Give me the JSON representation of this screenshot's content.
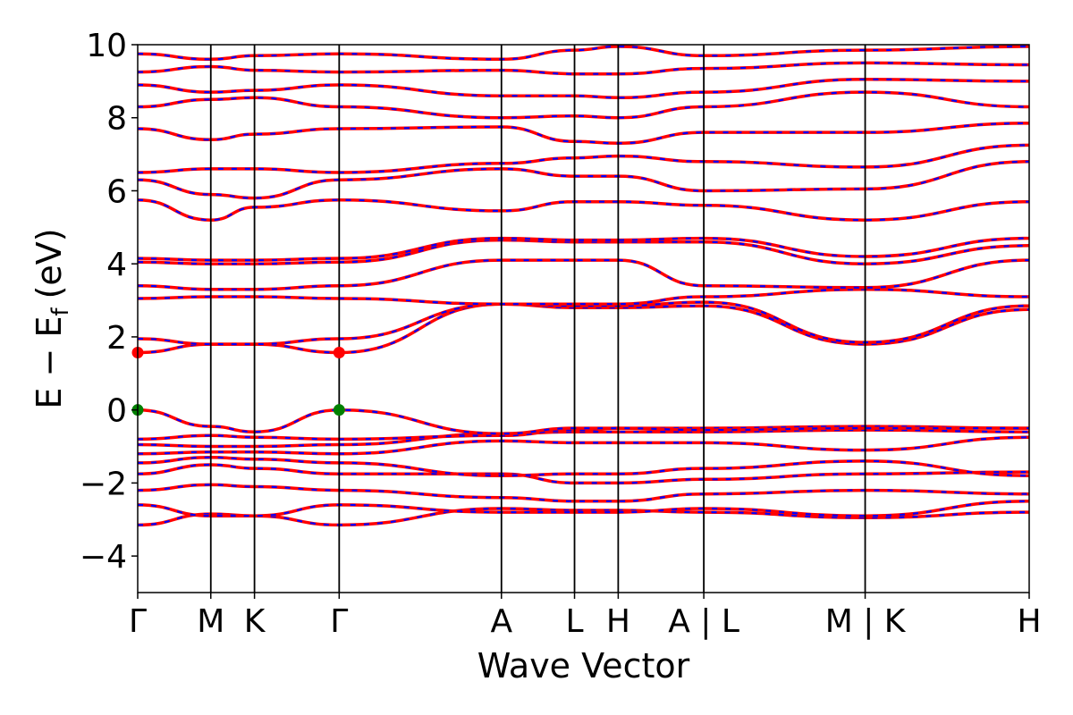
{
  "chart_data": {
    "type": "line",
    "title": "",
    "xlabel": "Wave Vector",
    "ylabel": "E − E",
    "ylabel_sub": "f",
    "ylabel_unit": "(eV)",
    "ylim": [
      -5,
      10
    ],
    "yticks": [
      -4,
      -2,
      0,
      2,
      4,
      6,
      8,
      10
    ],
    "ytick_labels": [
      "−4",
      "−2",
      "0",
      "2",
      "4",
      "6",
      "8",
      "10"
    ],
    "xlim": [
      0,
      10
    ],
    "kpoints": [
      {
        "label": "Γ",
        "x": 0.0
      },
      {
        "label": "M",
        "x": 0.82
      },
      {
        "label": "K",
        "x": 1.31
      },
      {
        "label": "Γ",
        "x": 2.26
      },
      {
        "label": "A",
        "x": 4.08
      },
      {
        "label": "L",
        "x": 4.9
      },
      {
        "label": "H",
        "x": 5.39
      },
      {
        "label": "A | L",
        "x": 6.35
      },
      {
        "label": "M | K",
        "x": 8.16
      },
      {
        "label": "H",
        "x": 10.0
      }
    ],
    "band_colors": {
      "line": "#ff0000",
      "dash": "#0000ff"
    },
    "grid": false,
    "legend": "none",
    "markers": [
      {
        "x": 0.0,
        "y": 1.57,
        "color": "#ff0000"
      },
      {
        "x": 2.26,
        "y": 1.57,
        "color": "#ff0000"
      },
      {
        "x": 0.0,
        "y": 0.0,
        "color": "#008000"
      },
      {
        "x": 2.26,
        "y": 0.0,
        "color": "#008000"
      }
    ],
    "series": [
      {
        "x": [
          0,
          0.82,
          1.31,
          2.26,
          4.08,
          4.9,
          5.39,
          6.35,
          8.16,
          10
        ],
        "y": [
          -3.15,
          -2.85,
          -2.9,
          -3.15,
          -2.7,
          -2.75,
          -2.75,
          -2.8,
          -2.95,
          -2.8
        ]
      },
      {
        "x": [
          0,
          0.82,
          1.31,
          2.26,
          4.08,
          4.9,
          5.39,
          6.35,
          8.16,
          10
        ],
        "y": [
          -2.6,
          -2.9,
          -2.9,
          -2.6,
          -2.8,
          -2.8,
          -2.8,
          -2.7,
          -2.9,
          -2.5
        ]
      },
      {
        "x": [
          0,
          0.82,
          1.31,
          2.26,
          4.08,
          4.9,
          5.39,
          6.35,
          8.16,
          10
        ],
        "y": [
          -2.2,
          -2.05,
          -2.1,
          -2.2,
          -2.4,
          -2.5,
          -2.5,
          -2.3,
          -2.2,
          -2.3
        ]
      },
      {
        "x": [
          0,
          0.82,
          1.31,
          2.26,
          4.08,
          4.9,
          5.39,
          6.35,
          8.16,
          10
        ],
        "y": [
          -1.75,
          -1.5,
          -1.6,
          -1.75,
          -1.75,
          -2.0,
          -2.0,
          -1.9,
          -1.75,
          -1.7
        ]
      },
      {
        "x": [
          0,
          0.82,
          1.31,
          2.26,
          4.08,
          4.9,
          5.39,
          6.35,
          8.16,
          10
        ],
        "y": [
          -1.45,
          -1.3,
          -1.35,
          -1.45,
          -1.8,
          -1.75,
          -1.75,
          -1.6,
          -1.4,
          -1.8
        ]
      },
      {
        "x": [
          0,
          0.82,
          1.31,
          2.26,
          4.08,
          4.9,
          5.39,
          6.35,
          8.16,
          10
        ],
        "y": [
          -1.2,
          -1.15,
          -1.15,
          -1.2,
          -0.85,
          -0.9,
          -0.9,
          -0.9,
          -1.1,
          -0.75
        ]
      },
      {
        "x": [
          0,
          0.82,
          1.31,
          2.26,
          4.08,
          4.9,
          5.39,
          6.35,
          8.16,
          10
        ],
        "y": [
          -0.95,
          -1.0,
          -1.0,
          -0.95,
          -0.65,
          -0.6,
          -0.6,
          -0.6,
          -0.55,
          -0.6
        ]
      },
      {
        "x": [
          0,
          0.82,
          1.31,
          2.26,
          4.08,
          4.9,
          5.39,
          6.35,
          8.16,
          10
        ],
        "y": [
          -0.8,
          -0.7,
          -0.75,
          -0.8,
          -0.7,
          -0.55,
          -0.5,
          -0.5,
          -0.45,
          -0.5
        ]
      },
      {
        "x": [
          0,
          0.82,
          1.31,
          2.26,
          4.08,
          4.9,
          5.39,
          6.35,
          8.16,
          10
        ],
        "y": [
          0.0,
          -0.45,
          -0.6,
          0.0,
          -0.65,
          -0.5,
          -0.5,
          -0.55,
          -0.5,
          -0.5
        ]
      },
      {
        "x": [
          0,
          0.82,
          1.31,
          2.26,
          4.08,
          4.9,
          5.39,
          6.35,
          8.16,
          10
        ],
        "y": [
          1.57,
          1.8,
          1.8,
          1.57,
          2.9,
          2.8,
          2.8,
          2.85,
          1.8,
          2.75
        ]
      },
      {
        "x": [
          0,
          0.82,
          1.31,
          2.26,
          4.08,
          4.9,
          5.39,
          6.35,
          8.16,
          10
        ],
        "y": [
          1.95,
          1.8,
          1.8,
          1.95,
          2.9,
          2.85,
          2.85,
          2.95,
          1.85,
          2.85
        ]
      },
      {
        "x": [
          0,
          0.82,
          1.31,
          2.26,
          4.08,
          4.9,
          5.39,
          6.35,
          8.16,
          10
        ],
        "y": [
          3.05,
          3.1,
          3.1,
          3.05,
          2.9,
          2.9,
          2.9,
          3.1,
          3.3,
          3.1
        ]
      },
      {
        "x": [
          0,
          0.82,
          1.31,
          2.26,
          4.08,
          4.9,
          5.39,
          6.35,
          8.16,
          10
        ],
        "y": [
          3.4,
          3.3,
          3.3,
          3.4,
          4.1,
          4.1,
          4.1,
          3.4,
          3.35,
          4.1
        ]
      },
      {
        "x": [
          0,
          0.82,
          1.31,
          2.26,
          4.08,
          4.9,
          5.39,
          6.35,
          8.16,
          10
        ],
        "y": [
          4.05,
          4.0,
          4.0,
          4.05,
          4.65,
          4.6,
          4.6,
          4.6,
          4.0,
          4.5
        ]
      },
      {
        "x": [
          0,
          0.82,
          1.31,
          2.26,
          4.08,
          4.9,
          5.39,
          6.35,
          8.16,
          10
        ],
        "y": [
          4.15,
          4.1,
          4.1,
          4.15,
          4.7,
          4.65,
          4.65,
          4.7,
          4.2,
          4.7
        ]
      },
      {
        "x": [
          0,
          0.82,
          1.31,
          2.26,
          4.08,
          4.9,
          5.39,
          6.35,
          8.16,
          10
        ],
        "y": [
          5.75,
          5.2,
          5.55,
          5.75,
          5.45,
          5.7,
          5.7,
          5.6,
          5.2,
          5.7
        ]
      },
      {
        "x": [
          0,
          0.82,
          1.31,
          2.26,
          4.08,
          4.9,
          5.39,
          6.35,
          8.16,
          10
        ],
        "y": [
          6.3,
          5.9,
          5.8,
          6.3,
          6.6,
          6.4,
          6.4,
          6.0,
          6.05,
          6.8
        ]
      },
      {
        "x": [
          0,
          0.82,
          1.31,
          2.26,
          4.08,
          4.9,
          5.39,
          6.35,
          8.16,
          10
        ],
        "y": [
          6.5,
          6.6,
          6.6,
          6.5,
          6.75,
          6.9,
          6.95,
          6.8,
          6.65,
          7.25
        ]
      },
      {
        "x": [
          0,
          0.82,
          1.31,
          2.26,
          4.08,
          4.9,
          5.39,
          6.35,
          8.16,
          10
        ],
        "y": [
          7.7,
          7.4,
          7.55,
          7.7,
          7.75,
          7.35,
          7.3,
          7.6,
          7.6,
          7.85
        ]
      },
      {
        "x": [
          0,
          0.82,
          1.31,
          2.26,
          4.08,
          4.9,
          5.39,
          6.35,
          8.16,
          10
        ],
        "y": [
          8.3,
          8.5,
          8.55,
          8.3,
          8.0,
          8.05,
          8.0,
          8.3,
          8.7,
          8.3
        ]
      },
      {
        "x": [
          0,
          0.82,
          1.31,
          2.26,
          4.08,
          4.9,
          5.39,
          6.35,
          8.16,
          10
        ],
        "y": [
          8.9,
          8.7,
          8.75,
          8.9,
          8.6,
          8.6,
          8.55,
          8.7,
          9.05,
          9.0
        ]
      },
      {
        "x": [
          0,
          0.82,
          1.31,
          2.26,
          4.08,
          4.9,
          5.39,
          6.35,
          8.16,
          10
        ],
        "y": [
          9.25,
          9.4,
          9.3,
          9.25,
          9.3,
          9.2,
          9.2,
          9.35,
          9.5,
          9.45
        ]
      },
      {
        "x": [
          0,
          0.82,
          1.31,
          2.26,
          4.08,
          4.9,
          5.39,
          6.35,
          8.16,
          10
        ],
        "y": [
          9.75,
          9.6,
          9.7,
          9.75,
          9.6,
          9.85,
          9.95,
          9.7,
          9.85,
          9.95
        ]
      }
    ]
  }
}
